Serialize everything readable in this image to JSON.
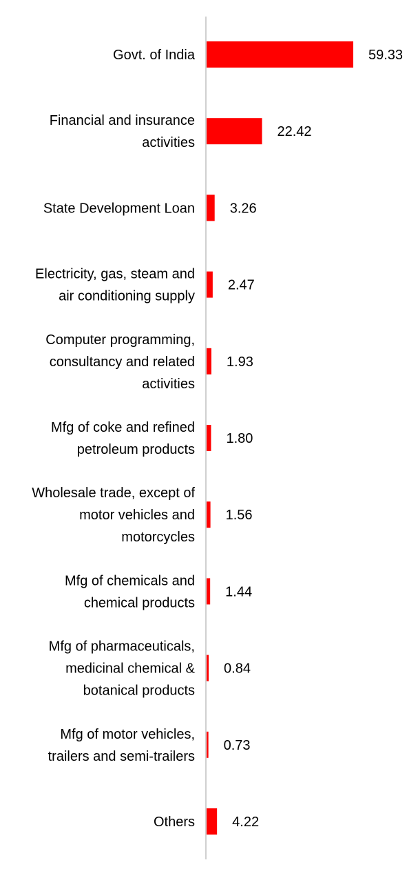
{
  "chart_data": {
    "type": "bar",
    "orientation": "horizontal",
    "categories": [
      [
        "Govt. of India"
      ],
      [
        "Financial and insurance",
        "activities"
      ],
      [
        "State Development Loan"
      ],
      [
        "Electricity, gas, steam and",
        "air conditioning supply"
      ],
      [
        "Computer programming,",
        "consultancy and related",
        "activities"
      ],
      [
        "Mfg of coke and refined",
        "petroleum products"
      ],
      [
        "Wholesale trade, except of",
        "motor vehicles and",
        "motorcycles"
      ],
      [
        "Mfg of chemicals and",
        "chemical products"
      ],
      [
        "Mfg of pharmaceuticals,",
        "medicinal chemical &",
        "botanical products"
      ],
      [
        "Mfg of motor vehicles,",
        "trailers and semi-trailers"
      ],
      [
        "Others"
      ]
    ],
    "values": [
      59.33,
      22.42,
      3.26,
      2.47,
      1.93,
      1.8,
      1.56,
      1.44,
      0.84,
      0.73,
      4.22
    ],
    "value_labels": [
      "59.33",
      "22.42",
      "3.26",
      "2.47",
      "1.93",
      "1.80",
      "1.56",
      "1.44",
      "0.84",
      "0.73",
      "4.22"
    ],
    "bar_color": "#ff0000",
    "axis_color": "#d0d0d0",
    "grid": false,
    "legend": "none"
  }
}
